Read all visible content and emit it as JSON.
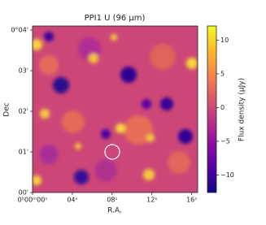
{
  "chart_data": {
    "type": "image",
    "title": "PPI1 U (96 μm)",
    "xlabel": "R.A.",
    "ylabel": "Dec",
    "xlim": [
      0,
      16.6
    ],
    "xticks": [
      {
        "value": 0,
        "label": "0ʰ00ᵐ00ˢ"
      },
      {
        "value": 4,
        "label": "04ˢ"
      },
      {
        "value": 8,
        "label": "08ˢ"
      },
      {
        "value": 12,
        "label": "12ˢ"
      },
      {
        "value": 16,
        "label": "16ˢ"
      }
    ],
    "ylim": [
      0,
      4.1
    ],
    "yticks": [
      {
        "value": 0,
        "label": "00'"
      },
      {
        "value": 1,
        "label": "01'"
      },
      {
        "value": 2,
        "label": "02'"
      },
      {
        "value": 3,
        "label": "03'"
      },
      {
        "value": 4,
        "label": "0°04'"
      }
    ],
    "colorbar": {
      "label": "Flux density (μJy)",
      "lim": [
        -12.6,
        12.1
      ],
      "ticks": [
        {
          "value": -10,
          "label": "−10"
        },
        {
          "value": -5,
          "label": "−5"
        },
        0,
        5,
        10
      ],
      "colormap": "plasma"
    }
  }
}
